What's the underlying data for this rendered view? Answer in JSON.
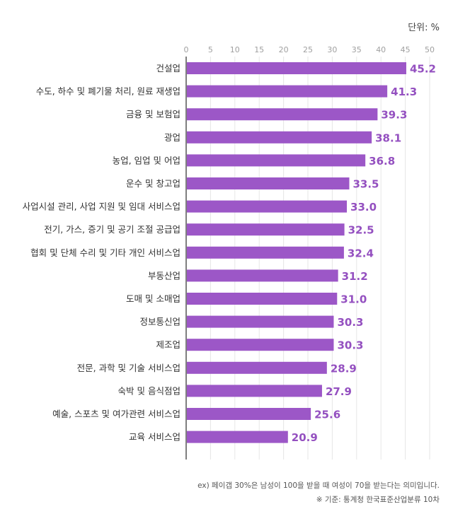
{
  "unit_label": "단위: %",
  "chart_data": {
    "type": "bar",
    "orientation": "horizontal",
    "title": "",
    "xlabel": "",
    "ylabel": "",
    "xlim": [
      0,
      50
    ],
    "ticks": [
      0,
      5,
      10,
      15,
      20,
      25,
      30,
      35,
      40,
      45,
      50
    ],
    "grid": true,
    "bar_color": "#9c57c7",
    "value_label_color": "#9450c0",
    "categories": [
      "건설업",
      "수도, 하수 및 폐기물 처리, 원료 재생업",
      "금융 및 보험업",
      "광업",
      "농업, 임업 및 어업",
      "운수 및 창고업",
      "사업시설 관리, 사업 지원 및 임대 서비스업",
      "전기, 가스, 증기 및 공기 조절 공급업",
      "협회 및 단체 수리 및 기타 개인 서비스업",
      "부동산업",
      "도매 및 소매업",
      "정보통신업",
      "제조업",
      "전문, 과학 및 기술 서비스업",
      "숙박 및 음식점업",
      "예술, 스포츠 및 여가관련 서비스업",
      "교육 서비스업"
    ],
    "values": [
      45.2,
      41.3,
      39.3,
      38.1,
      36.8,
      33.5,
      33.0,
      32.5,
      32.4,
      31.2,
      31.0,
      30.3,
      30.3,
      28.9,
      27.9,
      25.6,
      20.9
    ],
    "value_labels": [
      "45.2",
      "41.3",
      "39.3",
      "38.1",
      "36.8",
      "33.5",
      "33.0",
      "32.5",
      "32.4",
      "31.2",
      "31.0",
      "30.3",
      "30.3",
      "28.9",
      "27.9",
      "25.6",
      "20.9"
    ]
  },
  "footnotes": {
    "example": "ex) 페이갭 30%은 남성이 100을 받을 때 여성이 70을 받는다는 의미입니다.",
    "source": "※ 기준: 통계청 한국표준산업분류 10차"
  }
}
